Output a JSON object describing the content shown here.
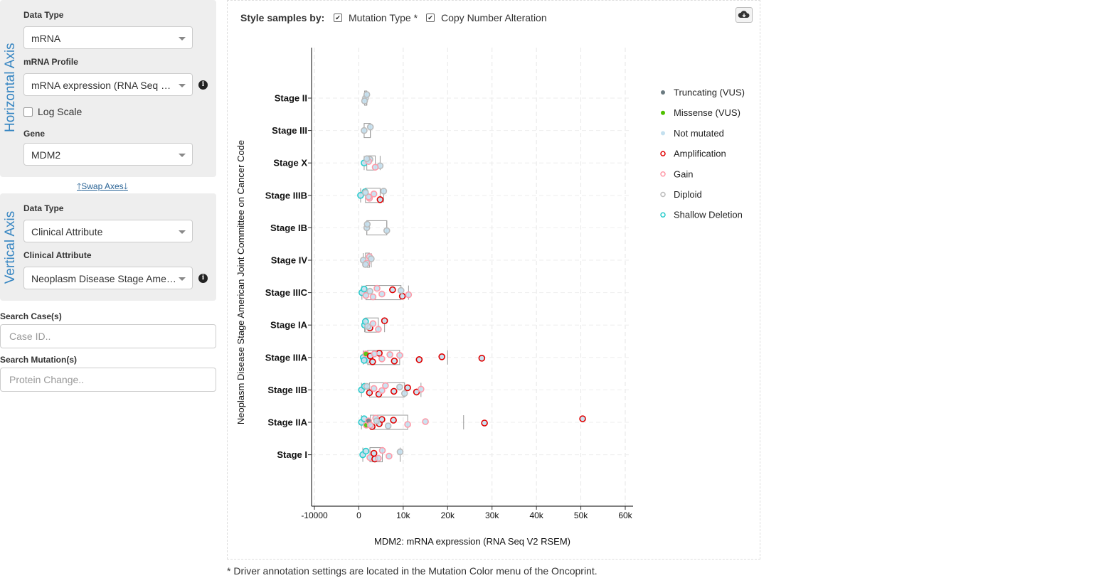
{
  "horizontal_axis": {
    "title": "Horizontal Axis",
    "data_type_label": "Data Type",
    "data_type_value": "mRNA",
    "profile_label": "mRNA Profile",
    "profile_value": "mRNA expression (RNA Seq V2 RSEM)",
    "log_scale_label": "Log Scale",
    "log_scale_checked": false,
    "gene_label": "Gene",
    "gene_value": "MDM2"
  },
  "swap_axes_label": "Swap Axes",
  "vertical_axis": {
    "title": "Vertical Axis",
    "data_type_label": "Data Type",
    "data_type_value": "Clinical Attribute",
    "attribute_label": "Clinical Attribute",
    "attribute_value": "Neoplasm Disease Stage American Joint Committee on Cancer Code"
  },
  "search_cases": {
    "label": "Search Case(s)",
    "placeholder": "Case ID.."
  },
  "search_mutations": {
    "label": "Search Mutation(s)",
    "placeholder": "Protein Change.."
  },
  "style_samples": {
    "label": "Style samples by:",
    "mutation_type_label": "Mutation Type *",
    "mutation_type_checked": true,
    "cna_label": "Copy Number Alteration",
    "cna_checked": true
  },
  "footnote": "* Driver annotation settings are located in the Mutation Color menu of the Oncoprint.",
  "colors": {
    "truncating": "#6b7a80",
    "missense": "#4fc000",
    "not_mutated": "#c4e0ef",
    "amplification": "#e00000",
    "gain": "#ff9aa8",
    "diploid": "#bbbbbb",
    "shallow_deletion": "#2acccc"
  },
  "chart_data": {
    "type": "scatter",
    "title": "",
    "xlabel": "MDM2: mRNA expression (RNA Seq V2 RSEM)",
    "ylabel": "Neoplasm Disease Stage American Joint Committee on Cancer Code",
    "xlim": [
      -10000,
      60000
    ],
    "x_ticks": [
      -10000,
      0,
      10000,
      20000,
      30000,
      40000,
      50000,
      60000
    ],
    "x_tick_labels": [
      "-10000",
      "0",
      "10k",
      "20k",
      "30k",
      "40k",
      "50k",
      "60k"
    ],
    "categories": [
      "Stage II",
      "Stage III",
      "Stage X",
      "Stage IIIB",
      "Stage IB",
      "Stage IV",
      "Stage IIIC",
      "Stage IA",
      "Stage IIIA",
      "Stage IIB",
      "Stage IIA",
      "Stage I"
    ],
    "grid": true,
    "legend_position": "right",
    "legend": [
      {
        "label": "Truncating (VUS)",
        "style": "filled",
        "color_key": "truncating"
      },
      {
        "label": "Missense (VUS)",
        "style": "filled",
        "color_key": "missense"
      },
      {
        "label": "Not mutated",
        "style": "filled",
        "color_key": "not_mutated"
      },
      {
        "label": "Amplification",
        "style": "ring",
        "color_key": "amplification"
      },
      {
        "label": "Gain",
        "style": "ring",
        "color_key": "gain"
      },
      {
        "label": "Diploid",
        "style": "ring",
        "color_key": "diploid"
      },
      {
        "label": "Shallow Deletion",
        "style": "ring",
        "color_key": "shallow_deletion"
      }
    ],
    "series": [
      {
        "category": "Stage II",
        "points": [
          [
            1500,
            "diploid",
            "none"
          ],
          [
            1800,
            "diploid",
            "none"
          ],
          [
            1300,
            "diploid",
            "none"
          ]
        ]
      },
      {
        "category": "Stage III",
        "points": [
          [
            1200,
            "diploid",
            "none"
          ],
          [
            2600,
            "diploid",
            "none"
          ]
        ]
      },
      {
        "category": "Stage X",
        "points": [
          [
            1200,
            "shallow_deletion",
            "none"
          ],
          [
            2500,
            "diploid",
            "none"
          ],
          [
            4800,
            "diploid",
            "none"
          ],
          [
            2200,
            "gain",
            "none"
          ],
          [
            3700,
            "gain",
            "none"
          ],
          [
            1800,
            "diploid",
            "none"
          ]
        ]
      },
      {
        "category": "Stage IIIB",
        "points": [
          [
            400,
            "shallow_deletion",
            "none"
          ],
          [
            1400,
            "shallow_deletion",
            "none"
          ],
          [
            2400,
            "gain",
            "none"
          ],
          [
            3400,
            "gain",
            "none"
          ],
          [
            4800,
            "amplification",
            "none"
          ],
          [
            5600,
            "diploid",
            "none"
          ],
          [
            2200,
            "gain",
            "none"
          ],
          [
            1500,
            "diploid",
            "none"
          ]
        ]
      },
      {
        "category": "Stage IB",
        "points": [
          [
            1800,
            "diploid",
            "none"
          ],
          [
            1900,
            "diploid",
            "none"
          ],
          [
            6300,
            "diploid",
            "none"
          ]
        ]
      },
      {
        "category": "Stage IV",
        "points": [
          [
            1000,
            "diploid",
            "none"
          ],
          [
            2400,
            "gain",
            "none"
          ],
          [
            1800,
            "gain",
            "none"
          ],
          [
            2800,
            "diploid",
            "none"
          ],
          [
            1500,
            "diploid",
            "none"
          ]
        ]
      },
      {
        "category": "Stage IIIC",
        "points": [
          [
            700,
            "shallow_deletion",
            "none"
          ],
          [
            1200,
            "shallow_deletion",
            "none"
          ],
          [
            1600,
            "gain",
            "none"
          ],
          [
            2500,
            "diploid",
            "none"
          ],
          [
            3200,
            "gain",
            "none"
          ],
          [
            4100,
            "gain",
            "none"
          ],
          [
            5200,
            "gain",
            "none"
          ],
          [
            7600,
            "amplification",
            "none"
          ],
          [
            9800,
            "amplification",
            "none"
          ],
          [
            9500,
            "diploid",
            "none"
          ],
          [
            11200,
            "gain",
            "none"
          ]
        ]
      },
      {
        "category": "Stage IA",
        "points": [
          [
            1300,
            "shallow_deletion",
            "none"
          ],
          [
            1500,
            "shallow_deletion",
            "none"
          ],
          [
            2500,
            "amplification",
            "none"
          ],
          [
            3200,
            "gain",
            "none"
          ],
          [
            4400,
            "gain",
            "none"
          ],
          [
            5800,
            "amplification",
            "none"
          ],
          [
            2000,
            "diploid",
            "none"
          ]
        ]
      },
      {
        "category": "Stage IIIA",
        "points": [
          [
            1000,
            "shallow_deletion",
            "none"
          ],
          [
            1600,
            "missense",
            "vus"
          ],
          [
            2000,
            "diploid",
            "none"
          ],
          [
            2600,
            "amplification",
            "none"
          ],
          [
            3100,
            "amplification",
            "none"
          ],
          [
            4600,
            "amplification",
            "none"
          ],
          [
            5200,
            "gain",
            "none"
          ],
          [
            7000,
            "gain",
            "none"
          ],
          [
            8000,
            "amplification",
            "none"
          ],
          [
            9200,
            "gain",
            "none"
          ],
          [
            13600,
            "amplification",
            "none"
          ],
          [
            18700,
            "amplification",
            "none"
          ],
          [
            27700,
            "amplification",
            "none"
          ],
          [
            3500,
            "gain",
            "none"
          ],
          [
            1200,
            "shallow_deletion",
            "none"
          ]
        ]
      },
      {
        "category": "Stage IIB",
        "points": [
          [
            600,
            "shallow_deletion",
            "none"
          ],
          [
            1300,
            "shallow_deletion",
            "none"
          ],
          [
            2400,
            "amplification",
            "none"
          ],
          [
            3400,
            "gain",
            "none"
          ],
          [
            4500,
            "amplification",
            "none"
          ],
          [
            6000,
            "gain",
            "none"
          ],
          [
            7900,
            "amplification",
            "none"
          ],
          [
            9200,
            "diploid",
            "none"
          ],
          [
            10300,
            "diploid",
            "none"
          ],
          [
            11000,
            "amplification",
            "none"
          ],
          [
            13000,
            "amplification",
            "none"
          ],
          [
            14000,
            "gain",
            "none"
          ],
          [
            5200,
            "gain",
            "none"
          ],
          [
            1800,
            "diploid",
            "none"
          ]
        ]
      },
      {
        "category": "Stage IIA",
        "points": [
          [
            600,
            "shallow_deletion",
            "none"
          ],
          [
            1200,
            "shallow_deletion",
            "none"
          ],
          [
            1700,
            "missense",
            "vus"
          ],
          [
            2200,
            "truncating",
            "vus"
          ],
          [
            3000,
            "amplification",
            "none"
          ],
          [
            3800,
            "gain",
            "none"
          ],
          [
            4600,
            "amplification",
            "none"
          ],
          [
            5200,
            "amplification",
            "none"
          ],
          [
            6600,
            "diploid",
            "none"
          ],
          [
            7800,
            "amplification",
            "none"
          ],
          [
            11000,
            "gain",
            "none"
          ],
          [
            15000,
            "gain",
            "none"
          ],
          [
            28300,
            "amplification",
            "none"
          ],
          [
            50400,
            "amplification",
            "none"
          ],
          [
            2600,
            "gain",
            "none"
          ],
          [
            4000,
            "diploid",
            "none"
          ]
        ]
      },
      {
        "category": "Stage I",
        "points": [
          [
            900,
            "shallow_deletion",
            "none"
          ],
          [
            1600,
            "shallow_deletion",
            "none"
          ],
          [
            2500,
            "gain",
            "none"
          ],
          [
            3400,
            "amplification",
            "none"
          ],
          [
            3600,
            "amplification",
            "none"
          ],
          [
            5300,
            "gain",
            "none"
          ],
          [
            6800,
            "gain",
            "none"
          ],
          [
            9300,
            "diploid",
            "none"
          ],
          [
            4400,
            "gain",
            "none"
          ]
        ]
      }
    ]
  }
}
